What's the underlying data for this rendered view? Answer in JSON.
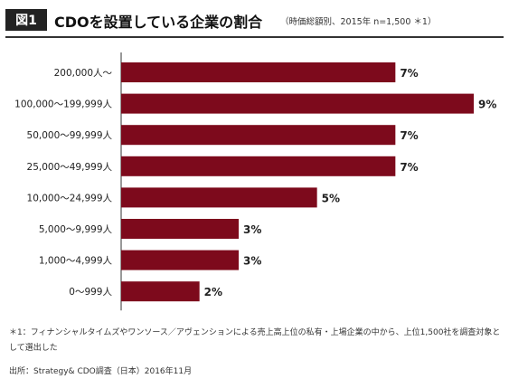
{
  "header": {
    "figure_label": "図1",
    "title": "CDOを設置している企業の割合",
    "subtitle": "（時価総額別、2015年  n=1,500 ＊1）"
  },
  "chart_data": {
    "type": "bar",
    "orientation": "horizontal",
    "categories": [
      "200,000人〜",
      "100,000〜199,999人",
      "50,000〜99,999人",
      "25,000〜49,999人",
      "10,000〜24,999人",
      "5,000〜9,999人",
      "1,000〜4,999人",
      "0〜999人"
    ],
    "values": [
      7,
      9,
      7,
      7,
      5,
      3,
      3,
      2
    ],
    "value_labels": [
      "7%",
      "9%",
      "7%",
      "7%",
      "5%",
      "3%",
      "3%",
      "2%"
    ],
    "unit": "%",
    "xlim": [
      0,
      9
    ],
    "grid": false,
    "bar_color": "#7d0a1c"
  },
  "footnotes": {
    "note1": "＊1：フィナンシャルタイムズやワンソース／アヴェンションによる売上高上位の私有・上場企業の中から、上位1,500社を調査対象として選出した",
    "source": "出所：Strategy& CDO調査（日本）2016年11月"
  }
}
